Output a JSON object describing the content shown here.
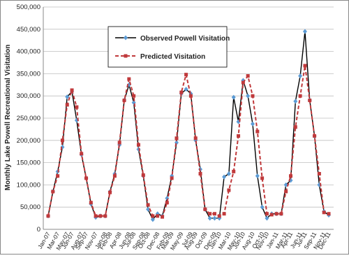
{
  "chart_data": {
    "type": "line",
    "ylabel": "Monthly Lake Powell Recreational Visitation",
    "categories": [
      "Jan-07",
      null,
      "Mar-07",
      null,
      "May-07",
      "Jun-07",
      null,
      "Aug-07",
      "Sep-07",
      null,
      "Nov-07",
      null,
      "Jan-08",
      "Feb-08",
      null,
      "Apr-08",
      null,
      "Jun-08",
      "Jul-08",
      null,
      "Sep-08",
      "Oct-08",
      null,
      "Dec-08",
      null,
      "Feb-09",
      "Mar-09",
      null,
      "May-09",
      null,
      "Jul-09",
      "Aug-09",
      null,
      "Oct-09",
      null,
      "Dec-09",
      "Jan-10",
      null,
      "Mar-10",
      null,
      "May-10",
      "Jun-10",
      null,
      "Aug-10",
      null,
      "Oct-10",
      "Nov-10",
      null,
      "Jan-11",
      null,
      "Mar-11",
      "Apr-11",
      null,
      "Jun-11",
      "Jul-11",
      null,
      "Sep-11",
      null,
      "Nov-11",
      "Dec-11"
    ],
    "series": [
      {
        "name": "Observed Powell Visitation",
        "color": "#000000",
        "marker_color": "#5b9bd5",
        "marker": "diamond",
        "dash": false,
        "values": [
          30000,
          85000,
          130000,
          185000,
          298000,
          310000,
          245000,
          168000,
          115000,
          57000,
          27000,
          30000,
          30000,
          85000,
          125000,
          190000,
          290000,
          325000,
          285000,
          180000,
          120000,
          45000,
          22000,
          35000,
          30000,
          70000,
          120000,
          195000,
          305000,
          315000,
          305000,
          200000,
          135000,
          45000,
          25000,
          25000,
          25000,
          118000,
          125000,
          297000,
          242000,
          335000,
          300000,
          237000,
          120000,
          50000,
          25000,
          35000,
          35000,
          35000,
          100000,
          110000,
          288000,
          345000,
          445000,
          290000,
          210000,
          100000,
          40000,
          32000
        ]
      },
      {
        "name": "Predicted Visitation",
        "color": "#c0393b",
        "marker_color": "#c0393b",
        "marker": "square",
        "dash": true,
        "values": [
          30000,
          85000,
          120000,
          200000,
          280000,
          313000,
          275000,
          170000,
          115000,
          60000,
          30000,
          30000,
          30000,
          83000,
          120000,
          195000,
          290000,
          338000,
          300000,
          190000,
          122000,
          55000,
          30000,
          30000,
          28000,
          60000,
          115000,
          205000,
          308000,
          348000,
          300000,
          205000,
          125000,
          45000,
          35000,
          35000,
          30000,
          35000,
          88000,
          130000,
          210000,
          330000,
          345000,
          300000,
          220000,
          115000,
          35000,
          33000,
          35000,
          35000,
          85000,
          120000,
          230000,
          300000,
          368000,
          290000,
          210000,
          125000,
          38000,
          35000
        ]
      }
    ],
    "ylim": [
      0,
      500000
    ],
    "yticks": [
      {
        "value": 0,
        "label": "0"
      },
      {
        "value": 50000,
        "label": "50,000"
      },
      {
        "value": 100000,
        "label": "100,000"
      },
      {
        "value": 150000,
        "label": "150,000"
      },
      {
        "value": 200000,
        "label": "200,000"
      },
      {
        "value": 250000,
        "label": "250,000"
      },
      {
        "value": 300000,
        "label": "300,000"
      },
      {
        "value": 350000,
        "label": "350,000"
      },
      {
        "value": 400000,
        "label": "400,000"
      },
      {
        "value": 450000,
        "label": "450,000"
      },
      {
        "value": 500000,
        "label": "500,000"
      }
    ],
    "grid": true
  }
}
